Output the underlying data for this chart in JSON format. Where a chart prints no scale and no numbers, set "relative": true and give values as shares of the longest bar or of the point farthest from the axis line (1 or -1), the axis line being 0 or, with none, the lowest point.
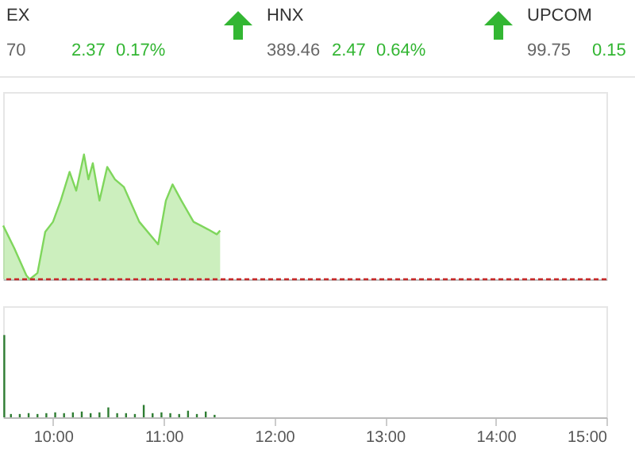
{
  "chart_data": [
    {
      "type": "other",
      "categories": [
        "EX",
        "HNX",
        "UPCOM"
      ],
      "data_labels": true,
      "series": [
        {
          "color": "#666666",
          "values": [
            70,
            389.46,
            99.75
          ]
        },
        {
          "color": "#33b633",
          "values": [
            2.37,
            2.47,
            0.15
          ]
        },
        {
          "color": "#33b633",
          "values": [
            0.17,
            0.64,
            null
          ],
          "value_labels": [
            "0.17%",
            "0.64%",
            null
          ]
        }
      ]
    },
    {
      "type": "area",
      "relative": true,
      "xlim": [
        9.55,
        15
      ],
      "tick_labels": false,
      "x": [
        9.55,
        9.65,
        9.76,
        9.79,
        9.86,
        9.93,
        10.0,
        10.07,
        10.15,
        10.21,
        10.28,
        10.32,
        10.36,
        10.42,
        10.49,
        10.56,
        10.64,
        10.78,
        10.95,
        11.02,
        11.08,
        11.16,
        11.27,
        11.4,
        11.48,
        11.51
      ],
      "series": [
        {
          "color": "#7fd65c",
          "values": [
            0.43,
            0.25,
            0.03,
            0,
            0.05,
            0.38,
            0.46,
            0.63,
            0.86,
            0.71,
            1,
            0.8,
            0.93,
            0.63,
            0.9,
            0.8,
            0.74,
            0.46,
            0.28,
            0.63,
            0.76,
            0.63,
            0.46,
            0.4,
            0.36,
            0.39
          ]
        }
      ],
      "ref_lines": [
        {
          "axis": "y",
          "value": 0,
          "color": "#c62828",
          "line_style": "dashed"
        }
      ]
    },
    {
      "type": "bar",
      "relative": true,
      "xlim": [
        9.55,
        15
      ],
      "xticks": [
        {
          "value": 10,
          "label": "10:00"
        },
        {
          "value": 11,
          "label": "11:00"
        },
        {
          "value": 12,
          "label": "12:00"
        },
        {
          "value": 13,
          "label": "13:00"
        },
        {
          "value": 14,
          "label": "14:00"
        },
        {
          "value": 15,
          "label": "15:00"
        }
      ],
      "tick_labels": "x",
      "x": [
        9.56,
        9.62,
        9.7,
        9.78,
        9.86,
        9.94,
        10.02,
        10.1,
        10.18,
        10.26,
        10.34,
        10.42,
        10.5,
        10.58,
        10.66,
        10.74,
        10.82,
        10.9,
        10.98,
        11.06,
        11.14,
        11.22,
        11.3,
        11.38,
        11.46
      ],
      "series": [
        {
          "color": "#2e7d32",
          "values": [
            1,
            0.04,
            0.04,
            0.05,
            0.04,
            0.05,
            0.06,
            0.05,
            0.06,
            0.07,
            0.05,
            0.06,
            0.12,
            0.05,
            0.05,
            0.04,
            0.15,
            0.05,
            0.06,
            0.05,
            0.04,
            0.08,
            0.04,
            0.07,
            0.03
          ]
        }
      ]
    }
  ]
}
